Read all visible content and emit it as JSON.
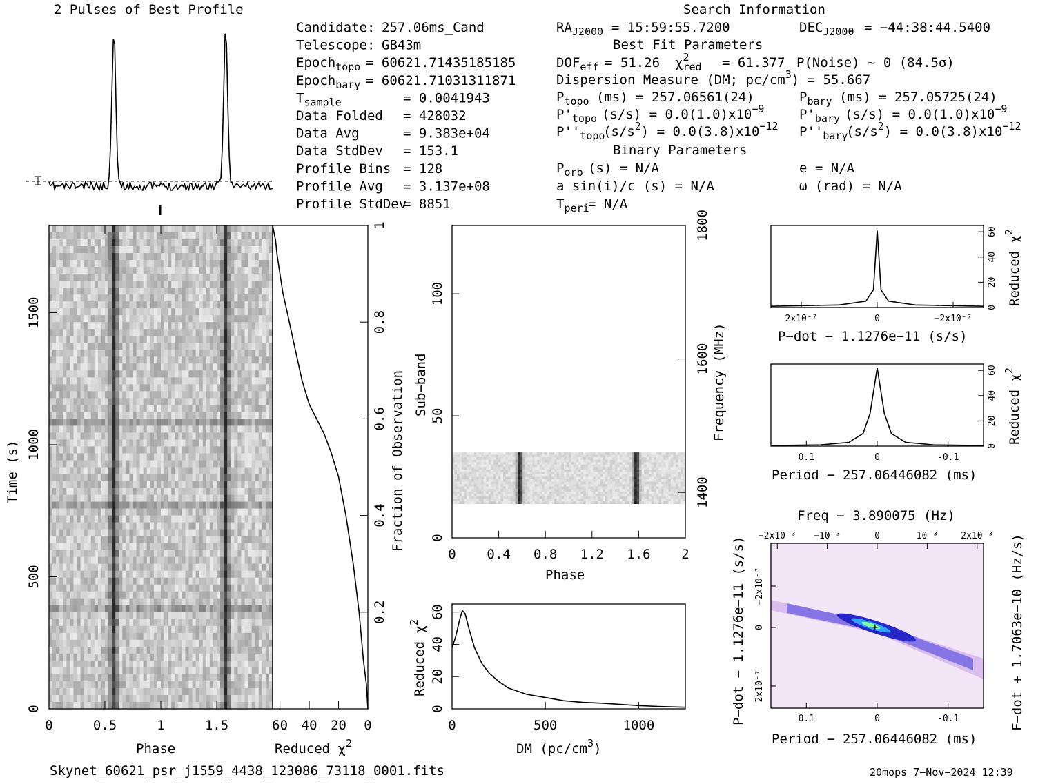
{
  "profile": {
    "title": "2 Pulses of Best Profile"
  },
  "search": {
    "title": "Search Information",
    "best_fit_title": "Best Fit Parameters",
    "binary_title": "Binary Parameters",
    "col1": [
      [
        "Candidate:",
        "257.06ms_Cand"
      ],
      [
        "Telescope:",
        "GB43m"
      ],
      [
        "Epoch_topo",
        "= 60621.71435185185"
      ],
      [
        "Epoch_bary",
        "= 60621.71031311871"
      ],
      [
        "T_sample",
        "=  0.0041943"
      ],
      [
        "Data Folded",
        "=  428032"
      ],
      [
        "Data Avg",
        "=  9.383e+04"
      ],
      [
        "Data StdDev",
        "=  153.1"
      ],
      [
        "Profile Bins",
        "=  128"
      ],
      [
        "Profile Avg",
        "=  3.137e+08"
      ],
      [
        "Profile StdDev",
        "=  8851"
      ]
    ],
    "ra": "= 15:59:55.7200",
    "dec": "= −44:38:44.5400",
    "dof": "= 51.26",
    "chi2red": "= 61.377",
    "pnoise": "P(Noise) ~ 0    (84.5σ)",
    "dm": "Dispersion Measure (DM; pc/cm",
    "dm_val": ") = 55.667",
    "ptopo": "(ms) =  257.06561(24)",
    "pbary": "(ms) =  257.05725(24)",
    "pdtopo": "(s/s) = 0.0(1.0)x10",
    "pdbary": "(s/s) = 0.0(1.0)x10",
    "pddtopo": "(s/s",
    "pddtopo2": ") = 0.0(3.8)x10",
    "pddbary": "(s/s",
    "pddbary2": ") = 0.0(3.8)x10",
    "porb": "(s) = N/A",
    "a1": "a sin(i)/c (s) = N/A",
    "tperi": "= N/A",
    "ecc": "e = N/A",
    "omega": "ω (rad) = N/A"
  },
  "footer": {
    "filename": "Skynet_60621_psr_j1559_4438_123086_73118_0001.fits",
    "stamp": "20mops  7−Nov−2024 12:39"
  },
  "axes": {
    "time_label": "Time (s)",
    "phase_label": "Phase",
    "redchi_label": "Reduced χ",
    "fraction_label": "Fraction of Observation",
    "subband_label": "Sub−band",
    "freq_label": "Frequency (MHz)",
    "dm_label": "DM (pc/cm",
    "pdot_label": "P−dot − 1.1276e−11 (s/s)",
    "period_label": "Period − 257.06446082 (ms)",
    "freq_top_label": "Freq − 3.890075 (Hz)",
    "pdot_left_label": "P−dot − 1.1276e−11 (s/s)",
    "fdot_label": "F−dot + 1.7063e−10 (Hz/s)"
  },
  "chart_data": [
    {
      "type": "line",
      "name": "pulse-profile",
      "x": [
        0,
        0.5,
        0.57,
        0.6,
        0.63,
        0.7,
        1.5,
        1.57,
        1.6,
        1.63,
        1.7,
        2
      ],
      "y": [
        0.02,
        0.03,
        0.5,
        1.0,
        0.5,
        0.02,
        0.03,
        0.5,
        1.0,
        0.5,
        0.02,
        0.02
      ],
      "xlim": [
        0,
        2
      ],
      "ylim": [
        0,
        1
      ]
    },
    {
      "type": "heatmap",
      "name": "time-phase",
      "xlabel": "Phase",
      "ylabel": "Time (s)",
      "xlim": [
        0,
        2
      ],
      "ylim": [
        0,
        1830
      ],
      "xticks": [
        0,
        0.5,
        1,
        1.5
      ],
      "yticks": [
        0,
        500,
        1000,
        1500
      ],
      "pulse_phases": [
        0.58,
        1.58
      ]
    },
    {
      "type": "line",
      "name": "cumulative-chi2",
      "x": [
        0,
        1,
        3,
        6,
        10,
        15,
        20,
        25,
        30,
        35,
        40,
        45,
        50,
        55,
        58,
        60,
        62,
        63,
        65
      ],
      "y": [
        0,
        0.05,
        0.1,
        0.2,
        0.3,
        0.4,
        0.48,
        0.53,
        0.57,
        0.6,
        0.63,
        0.68,
        0.75,
        0.82,
        0.86,
        0.9,
        0.94,
        0.97,
        1.0
      ],
      "xlabel": "Reduced χ²",
      "ylabel": "Fraction of Observation",
      "xticks": [
        60,
        40,
        20,
        0
      ],
      "yticks": [
        0.2,
        0.4,
        0.6,
        0.8,
        1
      ]
    },
    {
      "type": "heatmap",
      "name": "subband-phase",
      "xlabel": "Phase",
      "ylabel": "Sub−band",
      "xlim": [
        0,
        2
      ],
      "ylim": [
        0,
        128
      ],
      "xticks": [
        0,
        0.4,
        0.8,
        1.2,
        1.6,
        2
      ],
      "yticks": [
        0,
        50,
        100
      ],
      "freq_ticks": [
        1400,
        1600,
        1800
      ],
      "band_range": [
        14,
        35
      ],
      "pulse_phases": [
        0.58,
        1.58
      ]
    },
    {
      "type": "line",
      "name": "dm-chi2",
      "x": [
        0,
        20,
        40,
        55,
        70,
        90,
        120,
        160,
        200,
        250,
        300,
        400,
        500,
        600,
        700,
        800,
        900,
        1000,
        1100,
        1250
      ],
      "y": [
        38,
        45,
        55,
        61,
        59,
        50,
        38,
        28,
        22,
        17,
        13,
        9,
        7,
        5,
        4,
        3.5,
        2.8,
        2,
        1.5,
        1
      ],
      "xlabel": "DM (pc/cm³)",
      "ylabel": "Reduced χ²",
      "xlim": [
        0,
        1250
      ],
      "ylim": [
        0,
        65
      ],
      "xticks": [
        0,
        500,
        1000
      ],
      "yticks": [
        0,
        20,
        40,
        60
      ]
    },
    {
      "type": "line",
      "name": "pdot-chi2",
      "x": [
        -2.8e-07,
        -1e-07,
        -3e-08,
        -1e-08,
        0,
        1e-08,
        3e-08,
        1e-07,
        2.8e-07
      ],
      "y": [
        1,
        2,
        5,
        14,
        61,
        14,
        5,
        2,
        1
      ],
      "xlabel": "P−dot − 1.1276e−11 (s/s)",
      "ylabel": "Reduced χ²",
      "xticks": [
        "2x10⁻⁷",
        "0",
        "−2x10⁻⁷"
      ],
      "yticks": [
        0,
        20,
        40,
        60
      ]
    },
    {
      "type": "line",
      "name": "period-chi2",
      "x": [
        0.15,
        0.08,
        0.04,
        0.02,
        0.01,
        0,
        -0.01,
        -0.02,
        -0.04,
        -0.08,
        -0.15
      ],
      "y": [
        0.5,
        1,
        3,
        10,
        26,
        62,
        26,
        10,
        3,
        1,
        0.5
      ],
      "xlabel": "Period − 257.06446082 (ms)",
      "ylabel": "Reduced χ²",
      "xticks": [
        0.1,
        0,
        -0.1
      ],
      "yticks": [
        0,
        20,
        40,
        60
      ]
    },
    {
      "type": "heatmap",
      "name": "period-pdot",
      "xlabel": "Period − 257.06446082 (ms)",
      "ylabel": "P−dot − 1.1276e−11 (s/s)",
      "xticks": [
        0.1,
        0,
        -0.1
      ],
      "top_ticks": [
        "−2x10⁻³",
        "−10⁻³",
        "0",
        "10⁻³",
        "2x10⁻³"
      ]
    }
  ]
}
